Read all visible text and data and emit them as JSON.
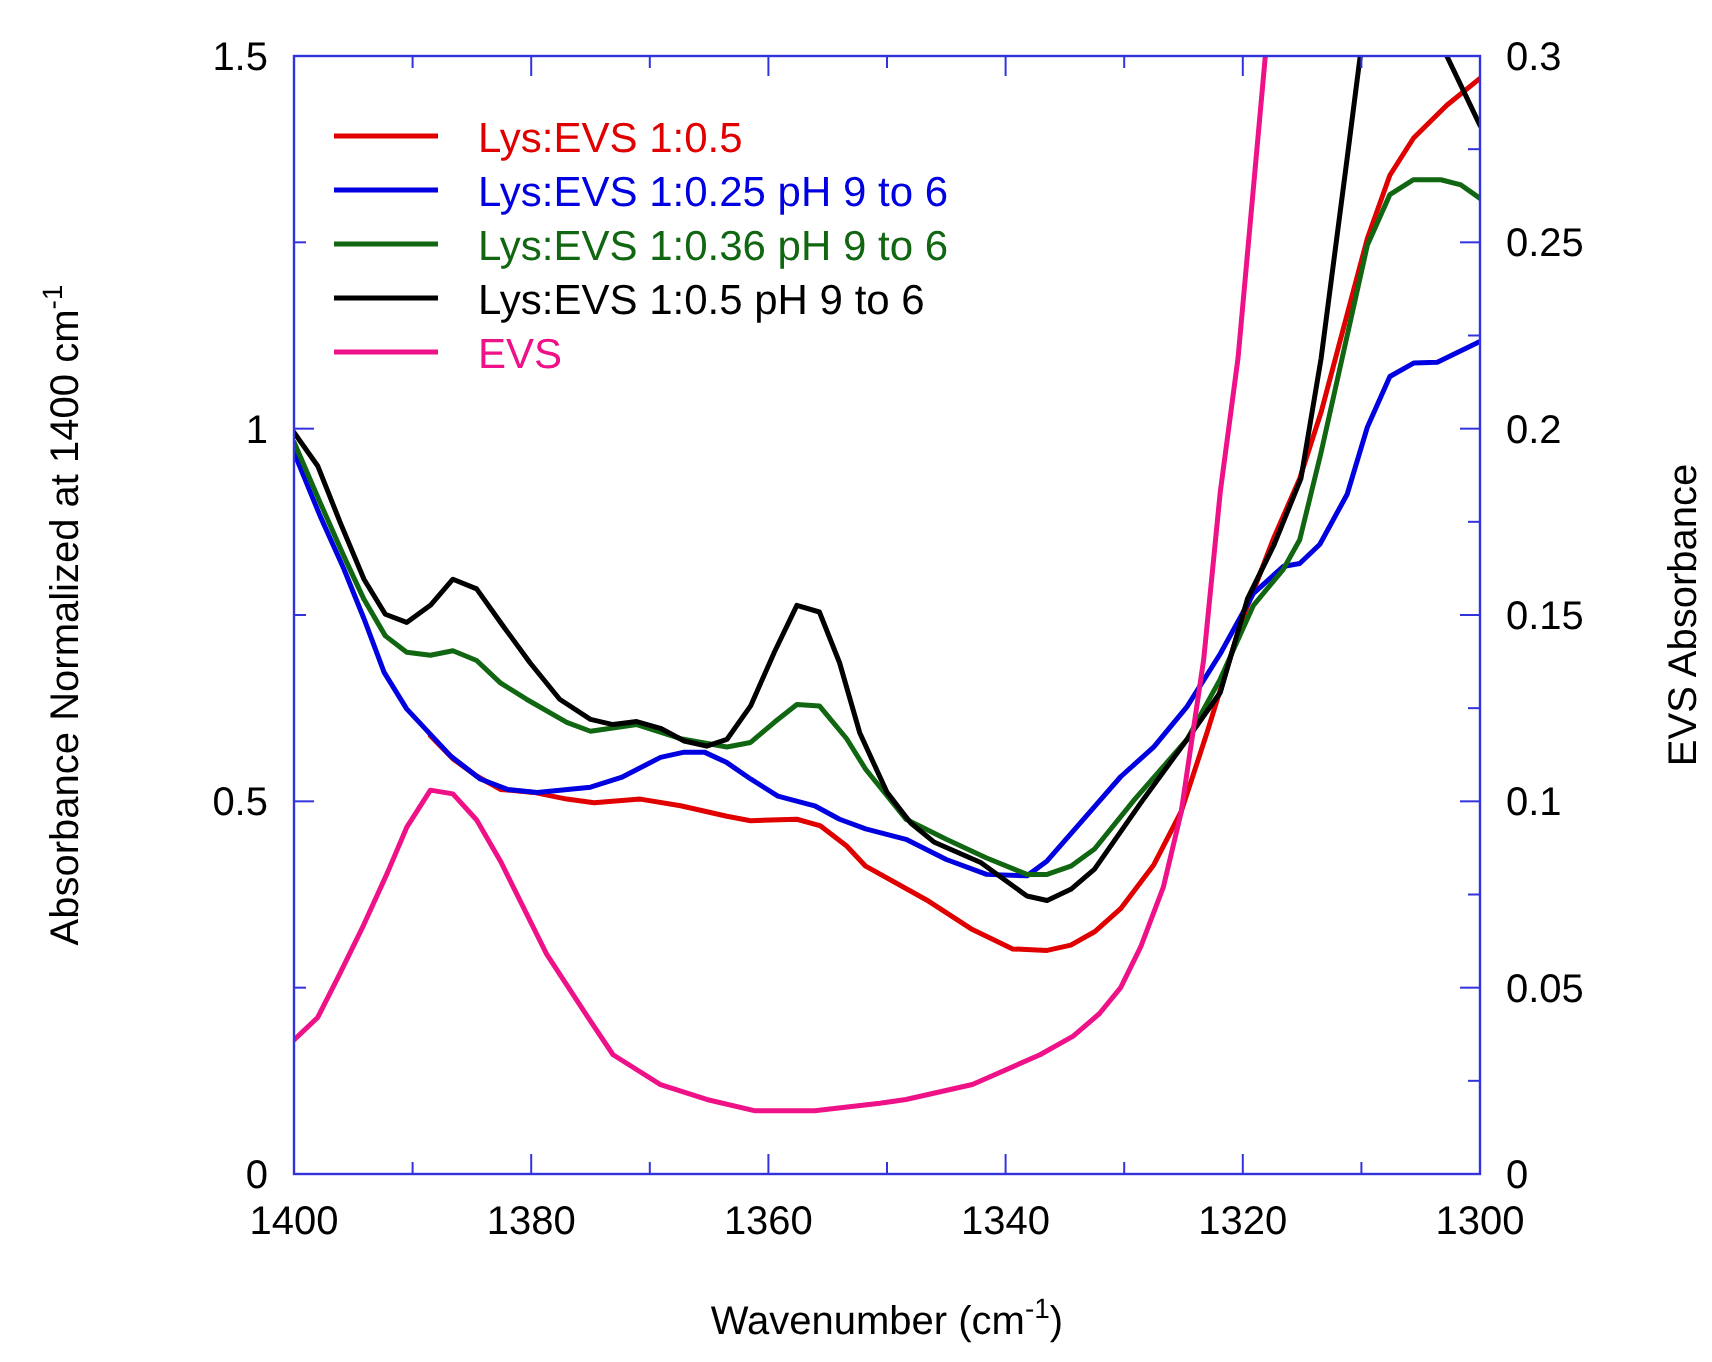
{
  "chart_data": {
    "type": "line",
    "xlabel": "Wavenumber (cm$^{-1}$)",
    "ylabel": "Absorbance Normalized at 1400 cm$^{-1}$",
    "y2label": "EVS Absorbance",
    "xlim": [
      1400,
      1300
    ],
    "xticks": [
      1400,
      {
        "value": 1390,
        "label": null
      },
      1380,
      {
        "value": 1370,
        "label": null
      },
      1360,
      {
        "value": 1350,
        "label": null
      },
      1340,
      {
        "value": 1330,
        "label": null
      },
      1320,
      {
        "value": 1310,
        "label": null
      },
      1300
    ],
    "ylim": [
      0,
      1.5
    ],
    "yticks": [
      0,
      {
        "value": 0.25,
        "label": null
      },
      0.5,
      {
        "value": 0.75,
        "label": null
      },
      1,
      {
        "value": 1.25,
        "label": null
      },
      1.5
    ],
    "y2lim": [
      0,
      0.3
    ],
    "y2ticks": [
      0,
      {
        "value": 0.025,
        "label": null
      },
      0.05,
      {
        "value": 0.075,
        "label": null
      },
      0.1,
      {
        "value": 0.125,
        "label": null
      },
      0.15,
      {
        "value": 0.175,
        "label": null
      },
      0.2,
      {
        "value": 0.225,
        "label": null
      },
      0.25,
      {
        "value": 0.275,
        "label": null
      },
      0.3
    ],
    "grid": false,
    "legend": "top left",
    "marker": "none",
    "line_style": "solid",
    "series": [
      {
        "name": "Lys:EVS 1:0.5",
        "color": "#e00000",
        "x": [
          1388.5,
          1386.6,
          1384.6,
          1382.6,
          1379.8,
          1377,
          1374.7,
          1370.8,
          1367.4,
          1363.5,
          1361.5,
          1357.6,
          1355.6,
          1353.4,
          1351.8,
          1346.7,
          1342.8,
          1339.4,
          1336.5,
          1334.5,
          1332.5,
          1330.3,
          1327.5,
          1325.2,
          1323,
          1320.2,
          1317.4,
          1315.2,
          1313.4,
          1309.5,
          1307.6,
          1305.6,
          1302.8,
          1300
        ],
        "values": [
          0.588,
          0.557,
          0.534,
          0.516,
          0.512,
          0.503,
          0.498,
          0.503,
          0.494,
          0.48,
          0.474,
          0.476,
          0.467,
          0.44,
          0.413,
          0.368,
          0.328,
          0.302,
          0.3,
          0.307,
          0.325,
          0.356,
          0.415,
          0.486,
          0.593,
          0.737,
          0.853,
          0.933,
          1.022,
          1.255,
          1.34,
          1.39,
          1.434,
          1.47
        ]
      },
      {
        "name": "Lys:EVS 1:0.25 pH 9 to 6",
        "color": "#0000e0",
        "x": [
          1400,
          1397.8,
          1395.8,
          1394.1,
          1392.4,
          1390.5,
          1386.8,
          1384.3,
          1382,
          1379.5,
          1375,
          1372.4,
          1369.1,
          1367.1,
          1365.4,
          1363.5,
          1361.5,
          1359.2,
          1356.1,
          1354,
          1351.8,
          1348.4,
          1345,
          1341.6,
          1338.2,
          1336.5,
          1332.5,
          1330.3,
          1327.5,
          1324.7,
          1321.9,
          1319.1,
          1316.6,
          1315.2,
          1313.5,
          1311.2,
          1309.5,
          1307.6,
          1305.6,
          1303.6,
          1300
        ],
        "values": [
          0.968,
          0.883,
          0.812,
          0.745,
          0.673,
          0.624,
          0.561,
          0.53,
          0.516,
          0.512,
          0.519,
          0.532,
          0.559,
          0.566,
          0.566,
          0.552,
          0.53,
          0.507,
          0.494,
          0.476,
          0.463,
          0.449,
          0.422,
          0.402,
          0.4,
          0.42,
          0.493,
          0.533,
          0.573,
          0.627,
          0.698,
          0.779,
          0.815,
          0.819,
          0.845,
          0.912,
          1.002,
          1.07,
          1.088,
          1.089,
          1.117
        ]
      },
      {
        "name": "Lys:EVS 1:0.36 pH 9 to 6",
        "color": "#116611",
        "x": [
          1400,
          1397.8,
          1395.8,
          1394.1,
          1392.3,
          1390.5,
          1388.5,
          1386.6,
          1384.6,
          1382.6,
          1380.4,
          1377,
          1375,
          1371.1,
          1367.4,
          1363.5,
          1361.5,
          1359.5,
          1357.6,
          1355.7,
          1353.4,
          1351.8,
          1348.4,
          1345,
          1341.6,
          1338.2,
          1336.5,
          1334.5,
          1332.5,
          1329.1,
          1324.7,
          1321.9,
          1319.1,
          1316.6,
          1315.2,
          1313.4,
          1309.5,
          1307.6,
          1305.6,
          1303.3,
          1301.6,
          1300
        ],
        "values": [
          0.982,
          0.901,
          0.829,
          0.771,
          0.722,
          0.7,
          0.696,
          0.702,
          0.689,
          0.659,
          0.637,
          0.606,
          0.594,
          0.603,
          0.584,
          0.573,
          0.579,
          0.606,
          0.63,
          0.628,
          0.584,
          0.543,
          0.476,
          0.449,
          0.424,
          0.402,
          0.402,
          0.413,
          0.436,
          0.503,
          0.583,
          0.664,
          0.763,
          0.811,
          0.851,
          0.968,
          1.246,
          1.314,
          1.334,
          1.334,
          1.327,
          1.309
        ]
      },
      {
        "name": "Lys:EVS 1:0.5 pH 9 to 6",
        "color": "#000000",
        "x": [
          1400,
          1398,
          1396.1,
          1394.1,
          1392.3,
          1390.5,
          1388.5,
          1386.6,
          1384.6,
          1382.4,
          1380.1,
          1377.6,
          1375,
          1373.1,
          1371.1,
          1369.1,
          1367.1,
          1365.2,
          1363.5,
          1361.5,
          1359.5,
          1357.6,
          1355.7,
          1354,
          1352.3,
          1350,
          1348,
          1346,
          1342.1,
          1338.2,
          1336.5,
          1334.5,
          1332.5,
          1328.6,
          1324.7,
          1321.9,
          1319.6,
          1317.4,
          1315.1,
          1313.4,
          1311.2,
          1310.1,
          1306,
          1302.8,
          1300
        ],
        "values": [
          0.995,
          0.95,
          0.874,
          0.798,
          0.751,
          0.74,
          0.763,
          0.798,
          0.785,
          0.736,
          0.686,
          0.637,
          0.61,
          0.603,
          0.607,
          0.598,
          0.581,
          0.574,
          0.583,
          0.628,
          0.7,
          0.763,
          0.754,
          0.686,
          0.592,
          0.512,
          0.471,
          0.445,
          0.418,
          0.373,
          0.367,
          0.382,
          0.409,
          0.498,
          0.583,
          0.646,
          0.772,
          0.843,
          0.933,
          1.094,
          1.363,
          1.5,
          null,
          1.5,
          1.407
        ]
      },
      {
        "name": "EVS",
        "color": "#ee1188",
        "axis": "y2",
        "x": [
          1400,
          1398,
          1396.1,
          1394.1,
          1392.1,
          1390.5,
          1388.5,
          1386.6,
          1384.6,
          1382.6,
          1378.7,
          1375,
          1373.1,
          1369.1,
          1365.2,
          1361.2,
          1356.1,
          1350.6,
          1348.4,
          1342.8,
          1337.1,
          1334.3,
          1332.1,
          1330.3,
          1328.6,
          1326.7,
          1325.2,
          1323.3,
          1321.9,
          1320.4,
          1318.1
        ],
        "values": [
          0.036,
          0.042,
          0.054,
          0.067,
          0.081,
          0.093,
          0.103,
          0.102,
          0.095,
          0.084,
          0.059,
          0.041,
          0.032,
          0.024,
          0.02,
          0.017,
          0.017,
          0.019,
          0.02,
          0.024,
          0.032,
          0.037,
          0.043,
          0.05,
          0.061,
          0.077,
          0.097,
          0.138,
          0.183,
          0.219,
          0.3
        ]
      }
    ]
  }
}
